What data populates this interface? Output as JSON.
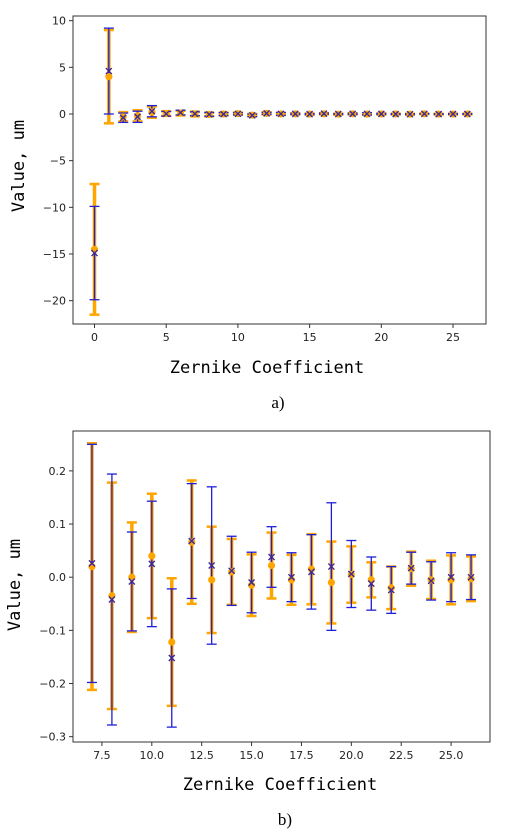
{
  "colors": {
    "orange": "#FFA500",
    "blue": "#1F1FD6",
    "center_point": "#FFA500",
    "center_marker": "#3A2A9A"
  },
  "chart_data": [
    {
      "type": "errorbar",
      "caption": "a)",
      "title": "",
      "xlabel": "Zernike Coefficient",
      "ylabel": "Value, um",
      "xlim": [
        -1.5,
        27.3
      ],
      "ylim": [
        -22.5,
        10.5
      ],
      "xticks": [
        "0",
        "5",
        "10",
        "15",
        "20",
        "25"
      ],
      "xtick_values": [
        0,
        5,
        10,
        15,
        20,
        25
      ],
      "yticks": [
        "10",
        "5",
        "0",
        "−5",
        "−10",
        "−15",
        "−20"
      ],
      "ytick_values": [
        10,
        5,
        0,
        -5,
        -10,
        -15,
        -20
      ],
      "series": [
        {
          "role": "orange",
          "marker": "dot",
          "x": [
            0,
            1,
            2,
            3,
            4,
            5,
            6,
            7,
            8,
            9,
            10,
            11,
            12,
            13,
            14,
            15,
            16,
            17,
            18,
            19,
            20,
            21,
            22,
            23,
            24,
            25,
            26
          ],
          "y": [
            -14.5,
            4.0,
            -0.3,
            -0.2,
            0.2,
            0.05,
            0.1,
            0.0,
            -0.05,
            0.0,
            0.04,
            -0.12,
            0.07,
            0.0,
            0.01,
            -0.01,
            0.02,
            -0.02,
            0.02,
            -0.01,
            0.0,
            0.0,
            -0.02,
            0.02,
            -0.01,
            -0.01,
            0.0
          ],
          "err": [
            7.0,
            5.0,
            0.5,
            0.6,
            0.6,
            0.25,
            0.25,
            0.25,
            0.2,
            0.15,
            0.12,
            0.12,
            0.12,
            0.1,
            0.06,
            0.06,
            0.06,
            0.05,
            0.06,
            0.08,
            0.06,
            0.04,
            0.04,
            0.03,
            0.04,
            0.04,
            0.04
          ]
        },
        {
          "role": "blue",
          "marker": "x",
          "x": [
            0,
            1,
            2,
            3,
            4,
            5,
            6,
            7,
            8,
            9,
            10,
            11,
            12,
            13,
            14,
            15,
            16,
            17,
            18,
            19,
            20,
            21,
            22,
            23,
            24,
            25,
            26
          ],
          "y": [
            -14.9,
            4.6,
            -0.4,
            -0.3,
            0.3,
            0.02,
            0.15,
            0.03,
            -0.04,
            -0.01,
            0.02,
            -0.15,
            0.07,
            0.02,
            0.01,
            -0.01,
            0.04,
            0.0,
            0.01,
            0.02,
            0.01,
            -0.01,
            -0.02,
            0.02,
            -0.01,
            0.0,
            0.0
          ],
          "err": [
            5.0,
            4.6,
            0.5,
            0.6,
            0.6,
            0.25,
            0.25,
            0.2,
            0.2,
            0.15,
            0.12,
            0.13,
            0.1,
            0.15,
            0.07,
            0.06,
            0.06,
            0.05,
            0.07,
            0.12,
            0.06,
            0.05,
            0.05,
            0.03,
            0.04,
            0.05,
            0.04
          ]
        }
      ]
    },
    {
      "type": "errorbar",
      "caption": "b)",
      "title": "",
      "xlabel": "Zernike Coefficient",
      "ylabel": "Value, um",
      "xlim": [
        6.05,
        26.95
      ],
      "ylim": [
        -0.31,
        0.275
      ],
      "xticks": [
        "7.5",
        "10.0",
        "12.5",
        "15.0",
        "17.5",
        "20.0",
        "22.5",
        "25.0"
      ],
      "xtick_values": [
        7.5,
        10.0,
        12.5,
        15.0,
        17.5,
        20.0,
        22.5,
        25.0
      ],
      "yticks": [
        "0.2",
        "0.1",
        "0.0",
        "−0.1",
        "−0.2",
        "−0.3"
      ],
      "ytick_values": [
        0.2,
        0.1,
        0.0,
        -0.1,
        -0.2,
        -0.3
      ],
      "series": [
        {
          "role": "orange",
          "marker": "dot",
          "x": [
            7,
            8,
            9,
            10,
            11,
            12,
            13,
            14,
            15,
            16,
            17,
            18,
            19,
            20,
            21,
            22,
            23,
            24,
            25,
            26
          ],
          "y": [
            0.02,
            -0.035,
            0.0,
            0.04,
            -0.122,
            0.066,
            -0.005,
            0.01,
            -0.015,
            0.022,
            -0.005,
            0.015,
            -0.01,
            0.005,
            -0.005,
            -0.02,
            0.016,
            -0.005,
            -0.005,
            -0.003
          ],
          "err": [
            0.232,
            0.213,
            0.103,
            0.117,
            0.12,
            0.116,
            0.1,
            0.062,
            0.058,
            0.062,
            0.047,
            0.066,
            0.077,
            0.053,
            0.033,
            0.04,
            0.032,
            0.036,
            0.046,
            0.042
          ]
        },
        {
          "role": "blue",
          "marker": "x",
          "x": [
            7,
            8,
            9,
            10,
            11,
            12,
            13,
            14,
            15,
            16,
            17,
            18,
            19,
            20,
            21,
            22,
            23,
            24,
            25,
            26
          ],
          "y": [
            0.026,
            -0.042,
            -0.008,
            0.025,
            -0.152,
            0.068,
            0.022,
            0.012,
            -0.01,
            0.038,
            0.0,
            0.01,
            0.02,
            0.006,
            -0.012,
            -0.024,
            0.017,
            -0.007,
            0.0,
            0.0
          ],
          "err": [
            0.224,
            0.236,
            0.093,
            0.118,
            0.13,
            0.108,
            0.148,
            0.065,
            0.057,
            0.057,
            0.046,
            0.07,
            0.12,
            0.063,
            0.05,
            0.044,
            0.03,
            0.036,
            0.046,
            0.042
          ]
        }
      ]
    }
  ]
}
